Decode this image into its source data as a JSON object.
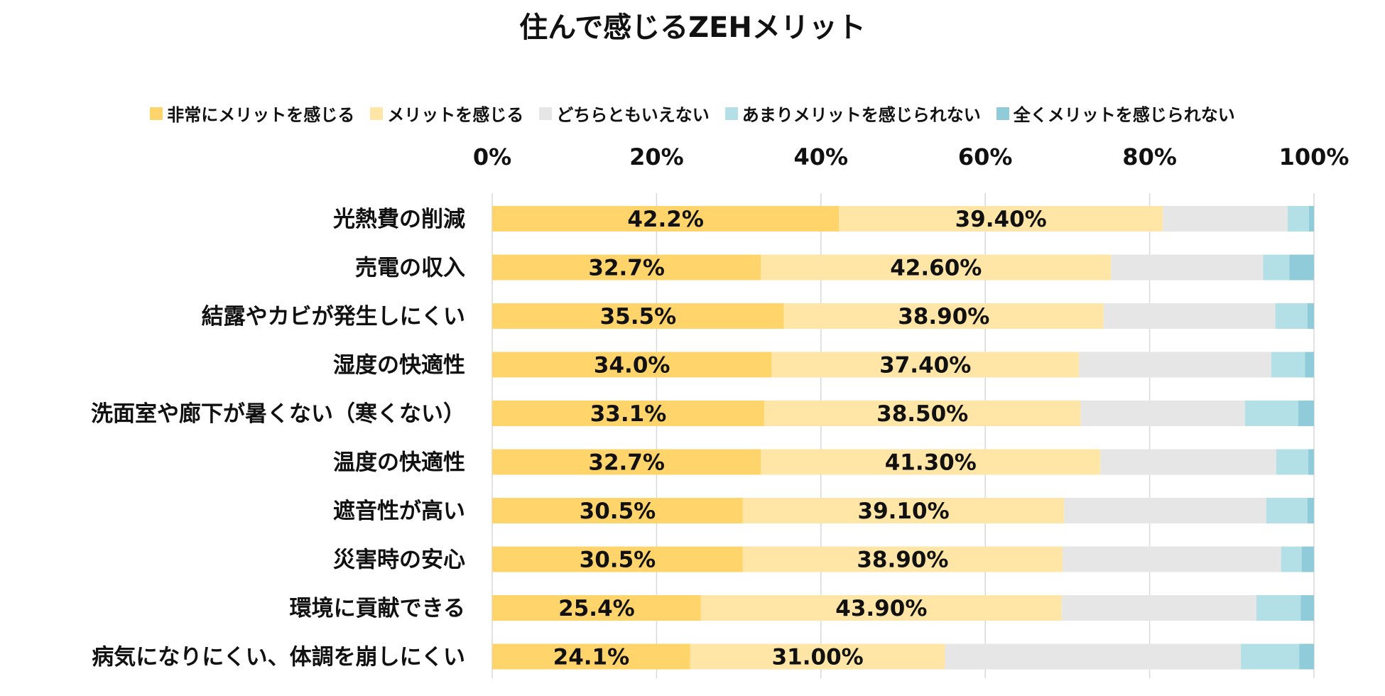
{
  "chart_data": {
    "type": "bar",
    "orientation": "horizontal",
    "stacked": true,
    "title": "住んで感じるZEHメリット",
    "xlim": [
      0,
      100
    ],
    "x_ticks": [
      "0%",
      "20%",
      "40%",
      "60%",
      "80%",
      "100%"
    ],
    "grid": true,
    "legend_position": "top",
    "categories": [
      "光熱費の削減",
      "売電の収入",
      "結露やカビが発生しにくい",
      "湿度の快適性",
      "洗面室や廊下が暑くない（寒くない）",
      "温度の快適性",
      "遮音性が高い",
      "災害時の安心",
      "環境に貢献できる",
      "病気になりにくい、体調を崩しにくい"
    ],
    "series": [
      {
        "name": "非常にメリットを感じる",
        "color": "#FFD46B",
        "values": [
          42.2,
          32.7,
          35.5,
          34.0,
          33.1,
          32.7,
          30.5,
          30.5,
          25.4,
          24.1
        ],
        "labels": [
          "42.2%",
          "32.7%",
          "35.5%",
          "34.0%",
          "33.1%",
          "32.7%",
          "30.5%",
          "30.5%",
          "25.4%",
          "24.1%"
        ]
      },
      {
        "name": "メリットを感じる",
        "color": "#FFE6A6",
        "values": [
          39.4,
          42.6,
          38.9,
          37.4,
          38.5,
          41.3,
          39.1,
          38.9,
          43.9,
          31.0
        ],
        "labels": [
          "39.40%",
          "42.60%",
          "38.90%",
          "37.40%",
          "38.50%",
          "41.30%",
          "39.10%",
          "38.90%",
          "43.90%",
          "31.00%"
        ]
      },
      {
        "name": "どちらともいえない",
        "color": "#E6E6E6",
        "values": [
          15.2,
          18.5,
          20.9,
          23.4,
          20.0,
          21.4,
          24.6,
          26.6,
          23.7,
          36.0
        ]
      },
      {
        "name": "あまりメリットを感じられない",
        "color": "#B3DFE6",
        "values": [
          2.6,
          3.2,
          3.9,
          4.1,
          6.5,
          3.9,
          5.0,
          2.5,
          5.4,
          7.1
        ]
      },
      {
        "name": "全くメリットを感じられない",
        "color": "#8FCBD9",
        "values": [
          0.6,
          3.0,
          0.8,
          1.1,
          1.9,
          0.7,
          0.8,
          1.5,
          1.6,
          1.8
        ]
      }
    ]
  }
}
